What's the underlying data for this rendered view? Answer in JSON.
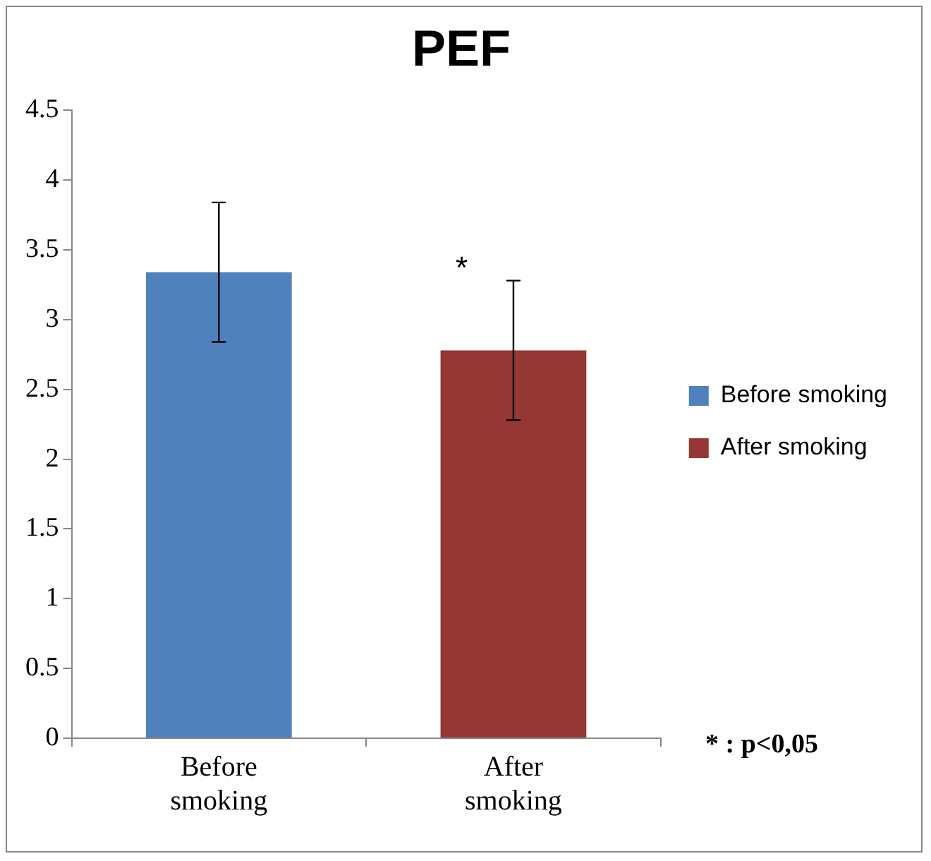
{
  "chart_data": {
    "type": "bar",
    "title": "PEF",
    "categories": [
      "Before smoking",
      "After smoking"
    ],
    "series": [
      {
        "name": "Before smoking",
        "color": "#4f81bd",
        "values": [
          3.34,
          null
        ],
        "errors": [
          0.5,
          null
        ]
      },
      {
        "name": "After smoking",
        "color": "#953735",
        "values": [
          null,
          2.78
        ],
        "errors": [
          null,
          0.5
        ]
      }
    ],
    "ylim": [
      0,
      4.5
    ],
    "yticks": [
      0,
      0.5,
      1,
      1.5,
      2,
      2.5,
      3,
      3.5,
      4,
      4.5
    ],
    "grid": false,
    "legend": "right",
    "annotations": [
      "*",
      "* : p<0,05"
    ]
  }
}
